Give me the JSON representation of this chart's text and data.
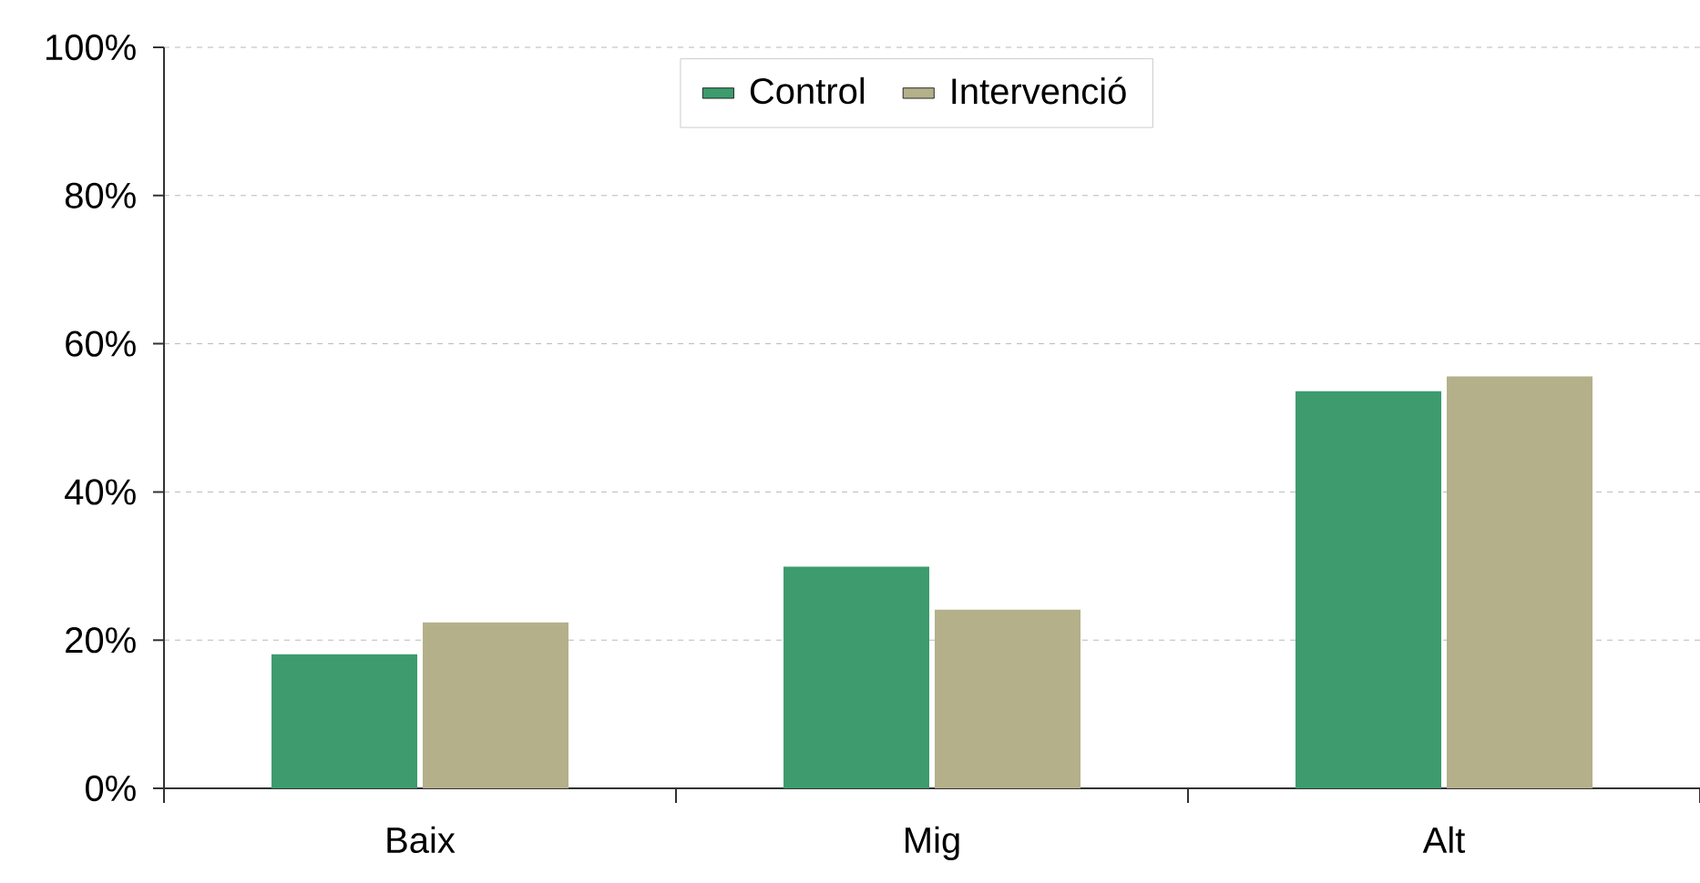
{
  "chart_data": {
    "type": "bar",
    "categories": [
      "Baix",
      "Mig",
      "Alt"
    ],
    "series": [
      {
        "name": "Control",
        "color": "#3d9b6d",
        "values": [
          18.1,
          29.9,
          53.6
        ]
      },
      {
        "name": "Intervenció",
        "color": "#b3b08a",
        "values": [
          22.4,
          24.1,
          55.6
        ]
      }
    ],
    "ylim": [
      0,
      100
    ],
    "yticks": [
      {
        "value": 0,
        "label": "0%"
      },
      {
        "value": 20,
        "label": "20%"
      },
      {
        "value": 40,
        "label": "40%"
      },
      {
        "value": 60,
        "label": "60%"
      },
      {
        "value": 80,
        "label": "80%"
      },
      {
        "value": 100,
        "label": "100%"
      }
    ],
    "grid": "y",
    "legend": "top"
  }
}
